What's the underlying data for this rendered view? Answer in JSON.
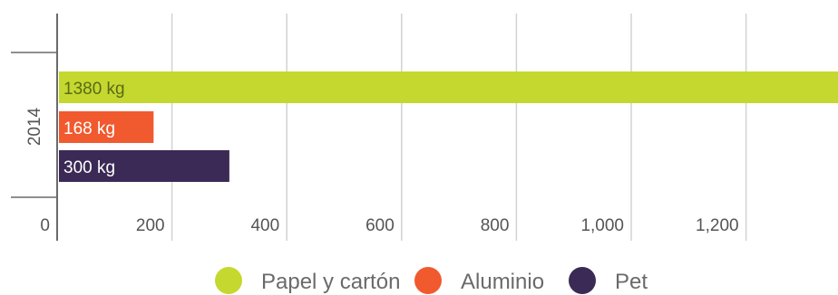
{
  "chart_data": {
    "type": "bar",
    "orientation": "horizontal",
    "categories": [
      "2014"
    ],
    "series": [
      {
        "name": "Papel y cartón",
        "values": [
          1380
        ],
        "label": "1380 kg",
        "color": "#c5d82f",
        "label_color": "#5a6a18"
      },
      {
        "name": "Aluminio",
        "values": [
          168
        ],
        "label": "168 kg",
        "color": "#f05a2e",
        "label_color": "#ffffff"
      },
      {
        "name": "Pet",
        "values": [
          300
        ],
        "label": "300 kg",
        "color": "#3b2a55",
        "label_color": "#ffffff"
      }
    ],
    "xticks": [
      0,
      200,
      400,
      600,
      800,
      1000,
      1200
    ],
    "xtick_labels": [
      "0",
      "200",
      "400",
      "600",
      "800",
      "1,000",
      "1,200"
    ],
    "xlim": [
      0,
      1380
    ],
    "grid": true,
    "legend_position": "bottom",
    "title": "",
    "xlabel": "",
    "ylabel": ""
  }
}
